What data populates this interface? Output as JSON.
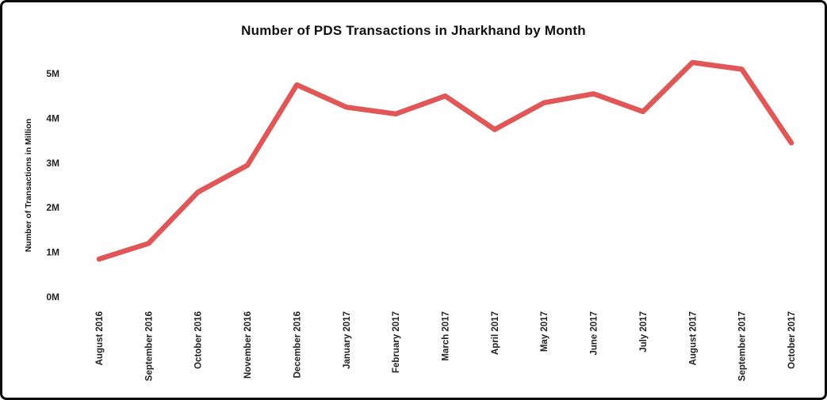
{
  "chart_data": {
    "type": "line",
    "title": "Number of PDS Transactions in Jharkhand by Month",
    "xlabel": "",
    "ylabel": "Number of Transactions in Million",
    "categories": [
      "August 2016",
      "September 2016",
      "October 2016",
      "November 2016",
      "December 2016",
      "January 2017",
      "February 2017",
      "March 2017",
      "April 2017",
      "May 2017",
      "June 2017",
      "July 2017",
      "August 2017",
      "September 2017",
      "October 2017"
    ],
    "values": [
      0.85,
      1.2,
      2.35,
      2.95,
      4.75,
      4.25,
      4.1,
      4.5,
      3.75,
      4.35,
      4.55,
      4.15,
      5.25,
      5.1,
      3.45
    ],
    "y_ticks": [
      "0M",
      "1M",
      "2M",
      "3M",
      "4M",
      "5M"
    ],
    "ylim": [
      0,
      5.5
    ],
    "grid": false,
    "legend": "none",
    "line_color": "#e15758",
    "text_color": "#222222"
  }
}
